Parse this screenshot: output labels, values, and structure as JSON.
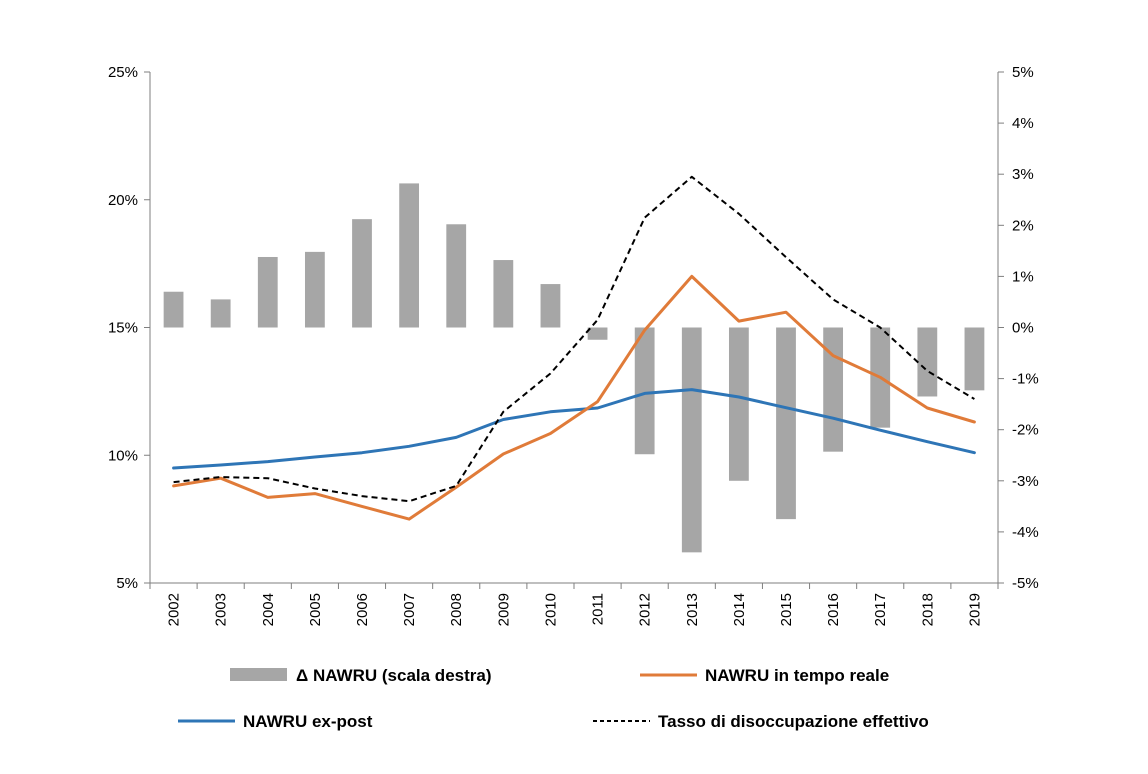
{
  "chart_data": {
    "type": "bar+line",
    "categories": [
      "2002",
      "2003",
      "2004",
      "2005",
      "2006",
      "2007",
      "2008",
      "2009",
      "2010",
      "2011",
      "2012",
      "2013",
      "2014",
      "2015",
      "2016",
      "2017",
      "2018",
      "2019"
    ],
    "y_left": {
      "ticks": [
        "5%",
        "10%",
        "15%",
        "20%",
        "25%"
      ],
      "range": [
        5,
        25
      ],
      "unit": "%"
    },
    "y_right": {
      "ticks": [
        "-5%",
        "-4%",
        "-3%",
        "-2%",
        "-1%",
        "0%",
        "1%",
        "2%",
        "3%",
        "4%",
        "5%"
      ],
      "range": [
        -5,
        5
      ],
      "unit": "%"
    },
    "series": [
      {
        "name": "Δ NAWRU (scala destra)",
        "type": "bar",
        "axis": "right",
        "color": "#a6a6a6",
        "values": [
          0.7,
          0.55,
          1.38,
          1.48,
          2.12,
          2.82,
          2.02,
          1.32,
          0.85,
          -0.24,
          -2.48,
          -4.4,
          -3.0,
          -3.75,
          -2.43,
          -1.96,
          -1.35,
          -1.23
        ]
      },
      {
        "name": "NAWRU in tempo reale",
        "type": "line",
        "axis": "left",
        "color": "#e07b39",
        "dash": "solid",
        "values": [
          8.8,
          9.1,
          8.35,
          8.5,
          8.0,
          7.5,
          8.75,
          10.05,
          10.85,
          12.1,
          14.9,
          17.0,
          15.25,
          15.6,
          13.9,
          13.05,
          11.85,
          11.3
        ]
      },
      {
        "name": "NAWRU ex-post",
        "type": "line",
        "axis": "left",
        "color": "#2e75b6",
        "dash": "solid",
        "values": [
          9.5,
          9.62,
          9.75,
          9.93,
          10.1,
          10.35,
          10.7,
          11.4,
          11.7,
          11.85,
          12.42,
          12.57,
          12.28,
          11.86,
          11.45,
          10.98,
          10.53,
          10.1
        ]
      },
      {
        "name": "Tasso di disoccupazione effettivo",
        "type": "line",
        "axis": "left",
        "color": "#000000",
        "dash": "dashed",
        "values": [
          8.95,
          9.15,
          9.1,
          8.7,
          8.4,
          8.2,
          8.8,
          11.7,
          13.2,
          15.3,
          19.3,
          20.9,
          19.45,
          17.75,
          16.1,
          15.0,
          13.3,
          12.2
        ]
      }
    ],
    "legend": {
      "position": "bottom",
      "labels": [
        "Δ NAWRU (scala destra)",
        "NAWRU in tempo reale",
        "NAWRU ex-post",
        "Tasso di disoccupazione effettivo"
      ]
    }
  }
}
